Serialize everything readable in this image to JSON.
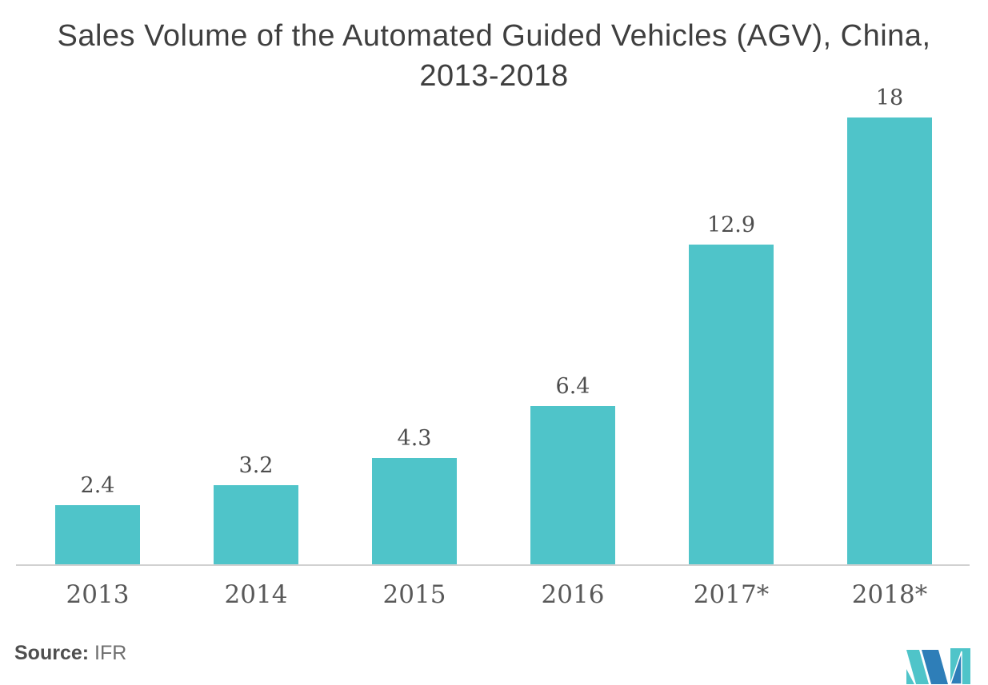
{
  "title": {
    "line1": "Sales Volume of the Automated Guided Vehicles (AGV), China,",
    "line2": "2013-2018"
  },
  "chart_data": {
    "type": "bar",
    "title": "Sales Volume of the Automated Guided Vehicles (AGV), China, 2013-2018",
    "categories": [
      "2013",
      "2014",
      "2015",
      "2016",
      "2017*",
      "2018*"
    ],
    "values": [
      2.4,
      3.2,
      4.3,
      6.4,
      12.9,
      18
    ],
    "value_labels": [
      "2.4",
      "3.2",
      "4.3",
      "6.4",
      "12.9",
      "18"
    ],
    "xlabel": "",
    "ylabel": "",
    "ylim": [
      0,
      19
    ],
    "grid": false,
    "legend": false,
    "y_axis_visible": false,
    "bar_color": "#4fc4c9",
    "value_label_color": "#4d4d4d",
    "axis_label_color": "#595959",
    "axis_line_color": "#d1d1d1",
    "title_color": "#3f3f3f"
  },
  "footer": {
    "source_label": "Source:",
    "source_value": "IFR"
  },
  "logo": {
    "name": "mordor-intelligence-logo",
    "teal": "#4fc4c9",
    "blue": "#2e7eb8"
  }
}
